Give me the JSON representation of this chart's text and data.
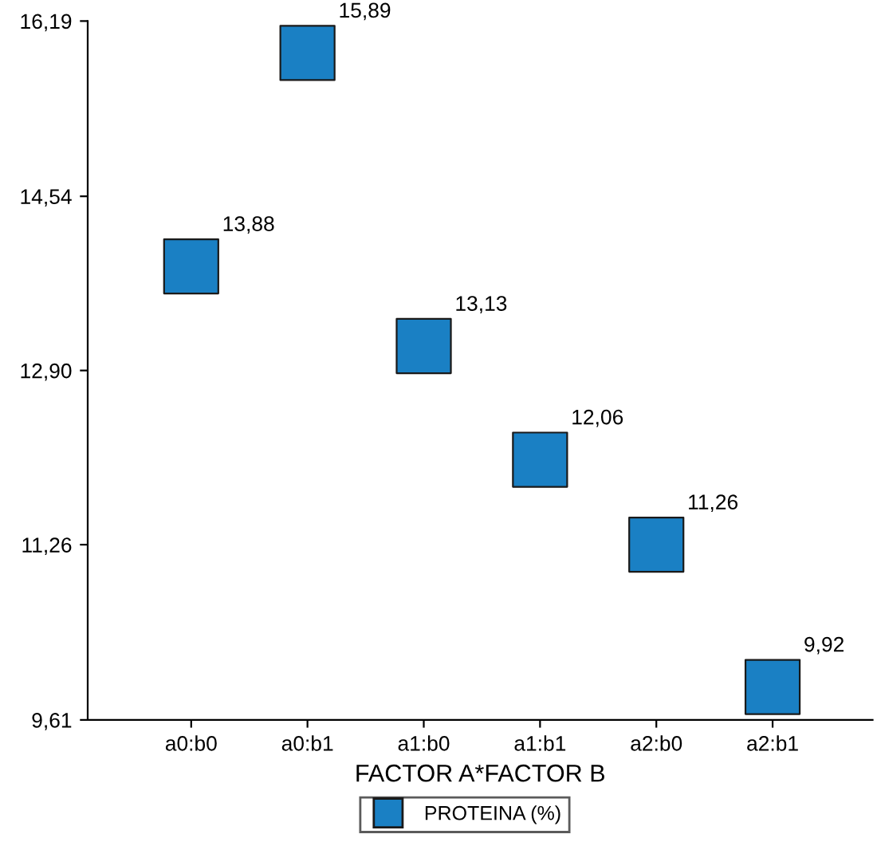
{
  "chart_data": {
    "type": "scatter",
    "xlabel": "FACTOR A*FACTOR B",
    "categories": [
      "a0:b0",
      "a0:b1",
      "a1:b0",
      "a1:b1",
      "a2:b0",
      "a2:b1"
    ],
    "series": [
      {
        "name": "PROTEINA (%)",
        "color": "#1a80c4",
        "values": [
          13.88,
          15.89,
          13.13,
          12.06,
          11.26,
          9.92
        ],
        "value_labels": [
          "13,88",
          "15,89",
          "13,13",
          "12,06",
          "11,26",
          "9,92"
        ]
      }
    ],
    "ylim": [
      9.61,
      16.19
    ],
    "yticks": [
      {
        "value": 9.61,
        "label": "9,61"
      },
      {
        "value": 11.26,
        "label": "11,26"
      },
      {
        "value": 12.9,
        "label": "12,90"
      },
      {
        "value": 14.54,
        "label": "14,54"
      },
      {
        "value": 16.19,
        "label": "16,19"
      }
    ],
    "marker": "square",
    "grid": false,
    "legend": "bottom"
  }
}
